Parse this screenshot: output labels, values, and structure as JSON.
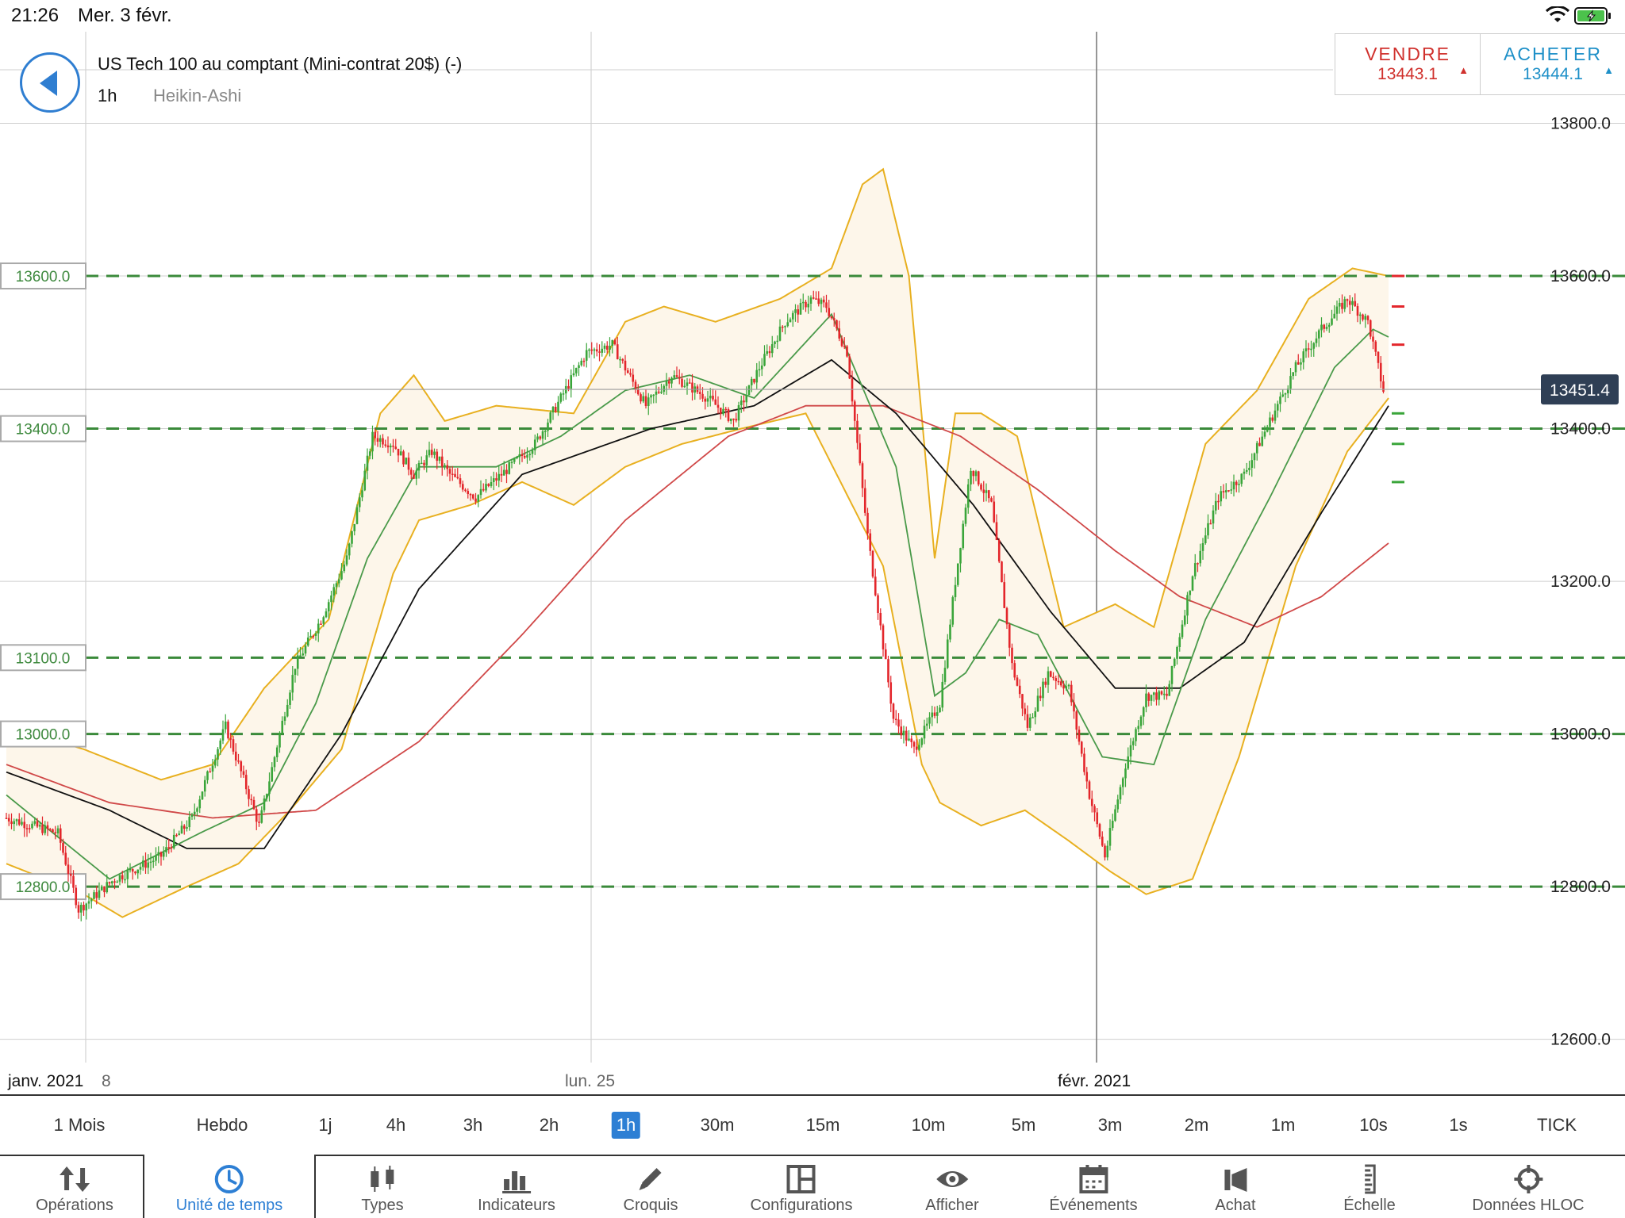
{
  "status": {
    "time": "21:26",
    "date": "Mer. 3 févr."
  },
  "header": {
    "instrument": "US Tech 100 au comptant (Mini-contrat 20$) (-)",
    "timeframe": "1h",
    "chart_type": "Heikin-Ashi"
  },
  "trade": {
    "sell_label": "VENDRE",
    "sell_price": "13443.1",
    "buy_label": "ACHETER",
    "buy_price": "13444.1"
  },
  "colors": {
    "bull": "#3aa53a",
    "bear": "#e3262b",
    "bollinger": "#e8b020",
    "band_fill": "#fdf6ea",
    "ma_fast": "#4a9a4a",
    "ma_mid": "#111111",
    "ma_slow": "#d04848",
    "level": "#3a8a3a",
    "accent": "#2d7fd4"
  },
  "chart_data": {
    "type": "candlestick",
    "ylim": [
      12530,
      13920
    ],
    "y_ticks": [
      "13800.0",
      "13600.0",
      "13400.0",
      "13200.0",
      "13000.0",
      "12800.0",
      "12600.0"
    ],
    "level_lines": [
      "13600.0",
      "13400.0",
      "13100.0",
      "13000.0",
      "12800.0"
    ],
    "current_price": "13451.4",
    "x_labels": [
      "janv. 2021",
      "8",
      "lun. 25",
      "févr. 2021"
    ],
    "anchors": [
      [
        0,
        12890
      ],
      [
        20,
        12870
      ],
      [
        28,
        12770
      ],
      [
        42,
        12810
      ],
      [
        60,
        12840
      ],
      [
        72,
        12890
      ],
      [
        85,
        13010
      ],
      [
        98,
        12880
      ],
      [
        112,
        13090
      ],
      [
        122,
        13150
      ],
      [
        132,
        13230
      ],
      [
        142,
        13390
      ],
      [
        150,
        13380
      ],
      [
        158,
        13340
      ],
      [
        165,
        13370
      ],
      [
        172,
        13340
      ],
      [
        182,
        13310
      ],
      [
        192,
        13340
      ],
      [
        205,
        13380
      ],
      [
        215,
        13440
      ],
      [
        225,
        13500
      ],
      [
        235,
        13510
      ],
      [
        248,
        13430
      ],
      [
        258,
        13470
      ],
      [
        272,
        13440
      ],
      [
        282,
        13410
      ],
      [
        292,
        13480
      ],
      [
        302,
        13540
      ],
      [
        312,
        13570
      ],
      [
        318,
        13560
      ],
      [
        326,
        13500
      ],
      [
        334,
        13260
      ],
      [
        344,
        13020
      ],
      [
        352,
        12980
      ],
      [
        362,
        13040
      ],
      [
        368,
        13200
      ],
      [
        374,
        13350
      ],
      [
        382,
        13300
      ],
      [
        390,
        13090
      ],
      [
        396,
        13010
      ],
      [
        404,
        13080
      ],
      [
        412,
        13060
      ],
      [
        420,
        12920
      ],
      [
        426,
        12840
      ],
      [
        434,
        12960
      ],
      [
        442,
        13050
      ],
      [
        450,
        13050
      ],
      [
        460,
        13210
      ],
      [
        470,
        13310
      ],
      [
        480,
        13340
      ],
      [
        490,
        13410
      ],
      [
        500,
        13480
      ],
      [
        510,
        13530
      ],
      [
        520,
        13570
      ],
      [
        528,
        13540
      ],
      [
        534,
        13450
      ]
    ],
    "ma_fast": [
      [
        0,
        12920
      ],
      [
        40,
        12810
      ],
      [
        75,
        12870
      ],
      [
        100,
        12910
      ],
      [
        120,
        13040
      ],
      [
        140,
        13230
      ],
      [
        160,
        13350
      ],
      [
        190,
        13350
      ],
      [
        215,
        13390
      ],
      [
        240,
        13450
      ],
      [
        265,
        13470
      ],
      [
        290,
        13440
      ],
      [
        320,
        13550
      ],
      [
        345,
        13350
      ],
      [
        360,
        13050
      ],
      [
        372,
        13080
      ],
      [
        385,
        13150
      ],
      [
        400,
        13130
      ],
      [
        425,
        12970
      ],
      [
        445,
        12960
      ],
      [
        465,
        13150
      ],
      [
        490,
        13310
      ],
      [
        515,
        13480
      ],
      [
        530,
        13530
      ],
      [
        536,
        13520
      ]
    ],
    "ma_mid": [
      [
        0,
        12950
      ],
      [
        40,
        12900
      ],
      [
        70,
        12850
      ],
      [
        100,
        12850
      ],
      [
        130,
        13000
      ],
      [
        160,
        13190
      ],
      [
        200,
        13340
      ],
      [
        250,
        13400
      ],
      [
        290,
        13430
      ],
      [
        320,
        13490
      ],
      [
        345,
        13420
      ],
      [
        375,
        13300
      ],
      [
        405,
        13160
      ],
      [
        430,
        13060
      ],
      [
        455,
        13060
      ],
      [
        480,
        13120
      ],
      [
        510,
        13290
      ],
      [
        536,
        13430
      ]
    ],
    "ma_slow": [
      [
        0,
        12960
      ],
      [
        40,
        12910
      ],
      [
        80,
        12890
      ],
      [
        120,
        12900
      ],
      [
        160,
        12990
      ],
      [
        200,
        13130
      ],
      [
        240,
        13280
      ],
      [
        280,
        13390
      ],
      [
        310,
        13430
      ],
      [
        340,
        13430
      ],
      [
        370,
        13390
      ],
      [
        400,
        13320
      ],
      [
        430,
        13240
      ],
      [
        455,
        13180
      ],
      [
        485,
        13140
      ],
      [
        510,
        13180
      ],
      [
        536,
        13250
      ]
    ],
    "bollinger_upper": [
      [
        0,
        13010
      ],
      [
        30,
        12980
      ],
      [
        60,
        12940
      ],
      [
        80,
        12960
      ],
      [
        100,
        13060
      ],
      [
        125,
        13150
      ],
      [
        145,
        13420
      ],
      [
        158,
        13470
      ],
      [
        170,
        13410
      ],
      [
        190,
        13430
      ],
      [
        220,
        13420
      ],
      [
        240,
        13540
      ],
      [
        255,
        13560
      ],
      [
        275,
        13540
      ],
      [
        300,
        13570
      ],
      [
        320,
        13610
      ],
      [
        332,
        13720
      ],
      [
        340,
        13740
      ],
      [
        350,
        13600
      ],
      [
        360,
        13230
      ],
      [
        368,
        13420
      ],
      [
        378,
        13420
      ],
      [
        392,
        13390
      ],
      [
        410,
        13140
      ],
      [
        430,
        13170
      ],
      [
        445,
        13140
      ],
      [
        465,
        13380
      ],
      [
        485,
        13450
      ],
      [
        505,
        13570
      ],
      [
        522,
        13610
      ],
      [
        536,
        13600
      ]
    ],
    "bollinger_lower": [
      [
        0,
        12830
      ],
      [
        30,
        12790
      ],
      [
        45,
        12760
      ],
      [
        70,
        12800
      ],
      [
        90,
        12830
      ],
      [
        110,
        12900
      ],
      [
        130,
        12980
      ],
      [
        150,
        13210
      ],
      [
        160,
        13280
      ],
      [
        180,
        13300
      ],
      [
        200,
        13330
      ],
      [
        220,
        13300
      ],
      [
        240,
        13350
      ],
      [
        262,
        13380
      ],
      [
        285,
        13400
      ],
      [
        310,
        13420
      ],
      [
        340,
        13220
      ],
      [
        355,
        12960
      ],
      [
        362,
        12910
      ],
      [
        378,
        12880
      ],
      [
        395,
        12900
      ],
      [
        412,
        12860
      ],
      [
        428,
        12820
      ],
      [
        442,
        12790
      ],
      [
        460,
        12810
      ],
      [
        478,
        12970
      ],
      [
        500,
        13220
      ],
      [
        520,
        13370
      ],
      [
        536,
        13440
      ]
    ]
  },
  "timeframes": [
    "1 Mois",
    "Hebdo",
    "1j",
    "4h",
    "3h",
    "2h",
    "1h",
    "30m",
    "15m",
    "10m",
    "5m",
    "3m",
    "2m",
    "1m",
    "10s",
    "1s",
    "TICK"
  ],
  "active_timeframe": "1h",
  "toolbar": {
    "items": [
      {
        "label": "Opérations",
        "icon": "arrows-updown-icon"
      },
      {
        "label": "Unité de temps",
        "icon": "clock-icon"
      },
      {
        "label": "Types",
        "icon": "candles-icon"
      },
      {
        "label": "Indicateurs",
        "icon": "bars-icon"
      },
      {
        "label": "Croquis",
        "icon": "pencil-icon"
      },
      {
        "label": "Configurations",
        "icon": "layout-icon"
      },
      {
        "label": "Afficher",
        "icon": "eye-icon"
      },
      {
        "label": "Événements",
        "icon": "calendar-icon"
      },
      {
        "label": "Achat",
        "icon": "megaphone-icon"
      },
      {
        "label": "Échelle",
        "icon": "scale-icon"
      },
      {
        "label": "Données HLOC",
        "icon": "crosshair-icon"
      }
    ],
    "active": "Unité de temps"
  }
}
